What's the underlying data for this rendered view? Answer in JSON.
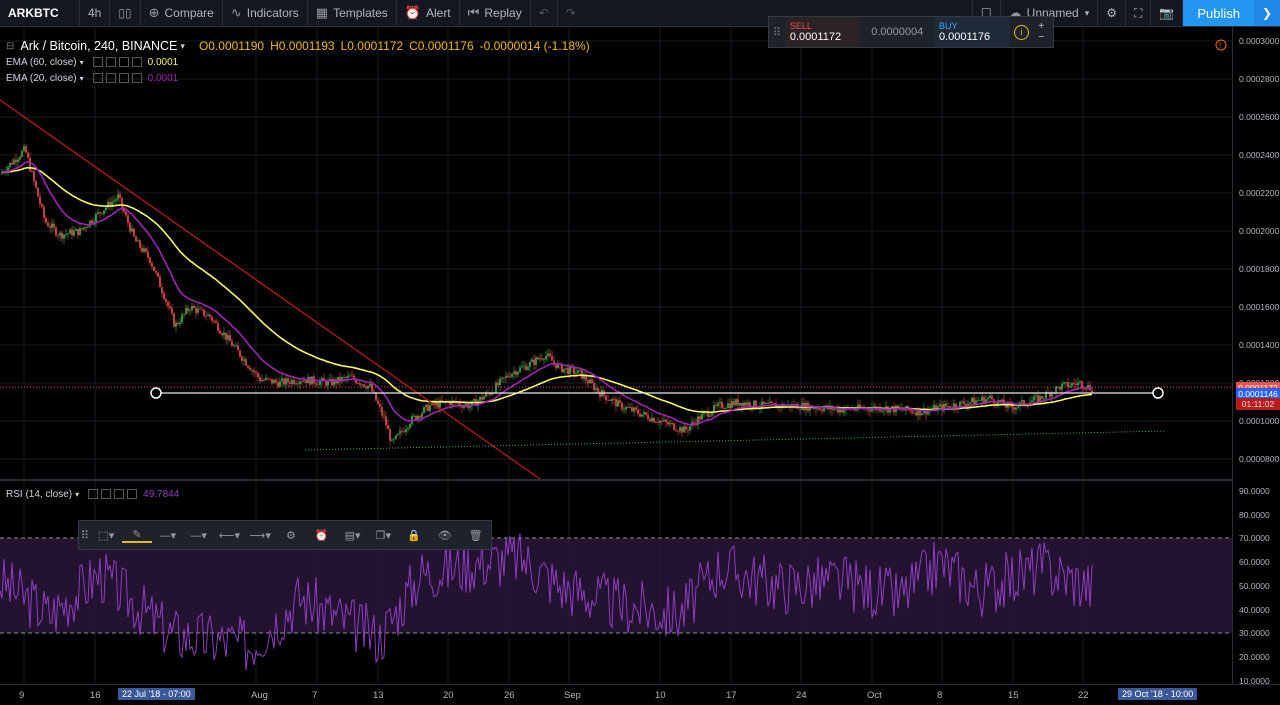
{
  "toolbar": {
    "symbol": "ARKBTC",
    "interval": "4h",
    "compare": "Compare",
    "indicators": "Indicators",
    "templates": "Templates",
    "alert": "Alert",
    "replay": "Replay",
    "layout_name": "Unnamed",
    "publish": "Publish"
  },
  "legend": {
    "title": "Ark / Bitcoin, 240, BINANCE",
    "open": "O0.0001190",
    "high": "H0.0001193",
    "low": "L0.0001172",
    "close": "C0.0001176",
    "change": "-0.0000014 (-1.18%)",
    "ema60_label": "EMA (60, close)",
    "ema60_value": "0.0001",
    "ema20_label": "EMA (20, close)",
    "ema20_value": "0.0001",
    "rsi_label": "RSI (14, close)",
    "rsi_value": "49.7844"
  },
  "ticket": {
    "sell_label": "SELL",
    "sell_price": "0.0001172",
    "spread": "0.0000004",
    "buy_label": "BUY",
    "buy_price": "0.0001176"
  },
  "price_axis": [
    "0.0003000",
    "0.0002800",
    "0.0002600",
    "0.0002400",
    "0.0002200",
    "0.0002000",
    "0.0001800",
    "0.0001600",
    "0.0001400",
    "0.0001200",
    "0.0001000",
    "0.0000800"
  ],
  "price_tags": {
    "current": "0.0001172",
    "line": "0.0001146",
    "countdown": "01:11:02"
  },
  "rsi_axis": [
    "90.0000",
    "80.0000",
    "70.0000",
    "60.0000",
    "50.0000",
    "40.0000",
    "30.0000",
    "20.0000",
    "10.0000"
  ],
  "time_axis": [
    "9",
    "16",
    "Aug",
    "7",
    "13",
    "20",
    "26",
    "Sep",
    "10",
    "17",
    "24",
    "Oct",
    "8",
    "15",
    "22"
  ],
  "crosshair": {
    "left_time": "22 Jul '18 - 07:00",
    "right_time": "29 Oct '18 - 10:00"
  },
  "colors": {
    "ema60": "#f5f567",
    "ema20": "#9c27b0",
    "up": "#4caf50",
    "down": "#ef5350",
    "trend": "#b71c1c",
    "rsi": "#8e3fbf"
  },
  "chart_data": {
    "type": "candlestick",
    "symbol": "ARKBTC",
    "interval": "240",
    "exchange": "BINANCE",
    "ylim": [
      7e-05,
      0.00031
    ],
    "series": [
      {
        "name": "EMA (60, close)",
        "x": [
          "9",
          "16",
          "Aug",
          "7",
          "13",
          "20",
          "26",
          "Sep",
          "10",
          "17",
          "24",
          "Oct",
          "8",
          "15",
          "22"
        ],
        "values": [
          0.00023,
          0.000222,
          0.000195,
          0.00013,
          0.000125,
          0.000108,
          0.000122,
          0.000128,
          0.000106,
          0.000108,
          0.000106,
          0.000106,
          0.00011,
          0.000112,
          0.000116
        ]
      },
      {
        "name": "EMA (20, close)",
        "x": [
          "9",
          "16",
          "Aug",
          "7",
          "13",
          "20",
          "26",
          "Sep",
          "10",
          "17",
          "24",
          "Oct",
          "8",
          "15",
          "22"
        ],
        "values": [
          0.000225,
          0.000208,
          0.00016,
          0.000118,
          0.000112,
          0.000106,
          0.000127,
          0.00012,
          0.0001,
          0.000108,
          0.000107,
          0.000107,
          0.000111,
          0.000114,
          0.000117
        ]
      },
      {
        "name": "RSI (14, close)",
        "x": [
          "9",
          "16",
          "Aug",
          "7",
          "13",
          "20",
          "26",
          "Sep",
          "10",
          "17",
          "24",
          "Oct",
          "8",
          "15",
          "22"
        ],
        "values": [
          52,
          40,
          35,
          45,
          30,
          52,
          58,
          48,
          40,
          55,
          52,
          45,
          55,
          50,
          49.78
        ]
      }
    ],
    "rsi_bands": [
      30,
      70
    ],
    "horizontal_line": 0.0001146
  }
}
